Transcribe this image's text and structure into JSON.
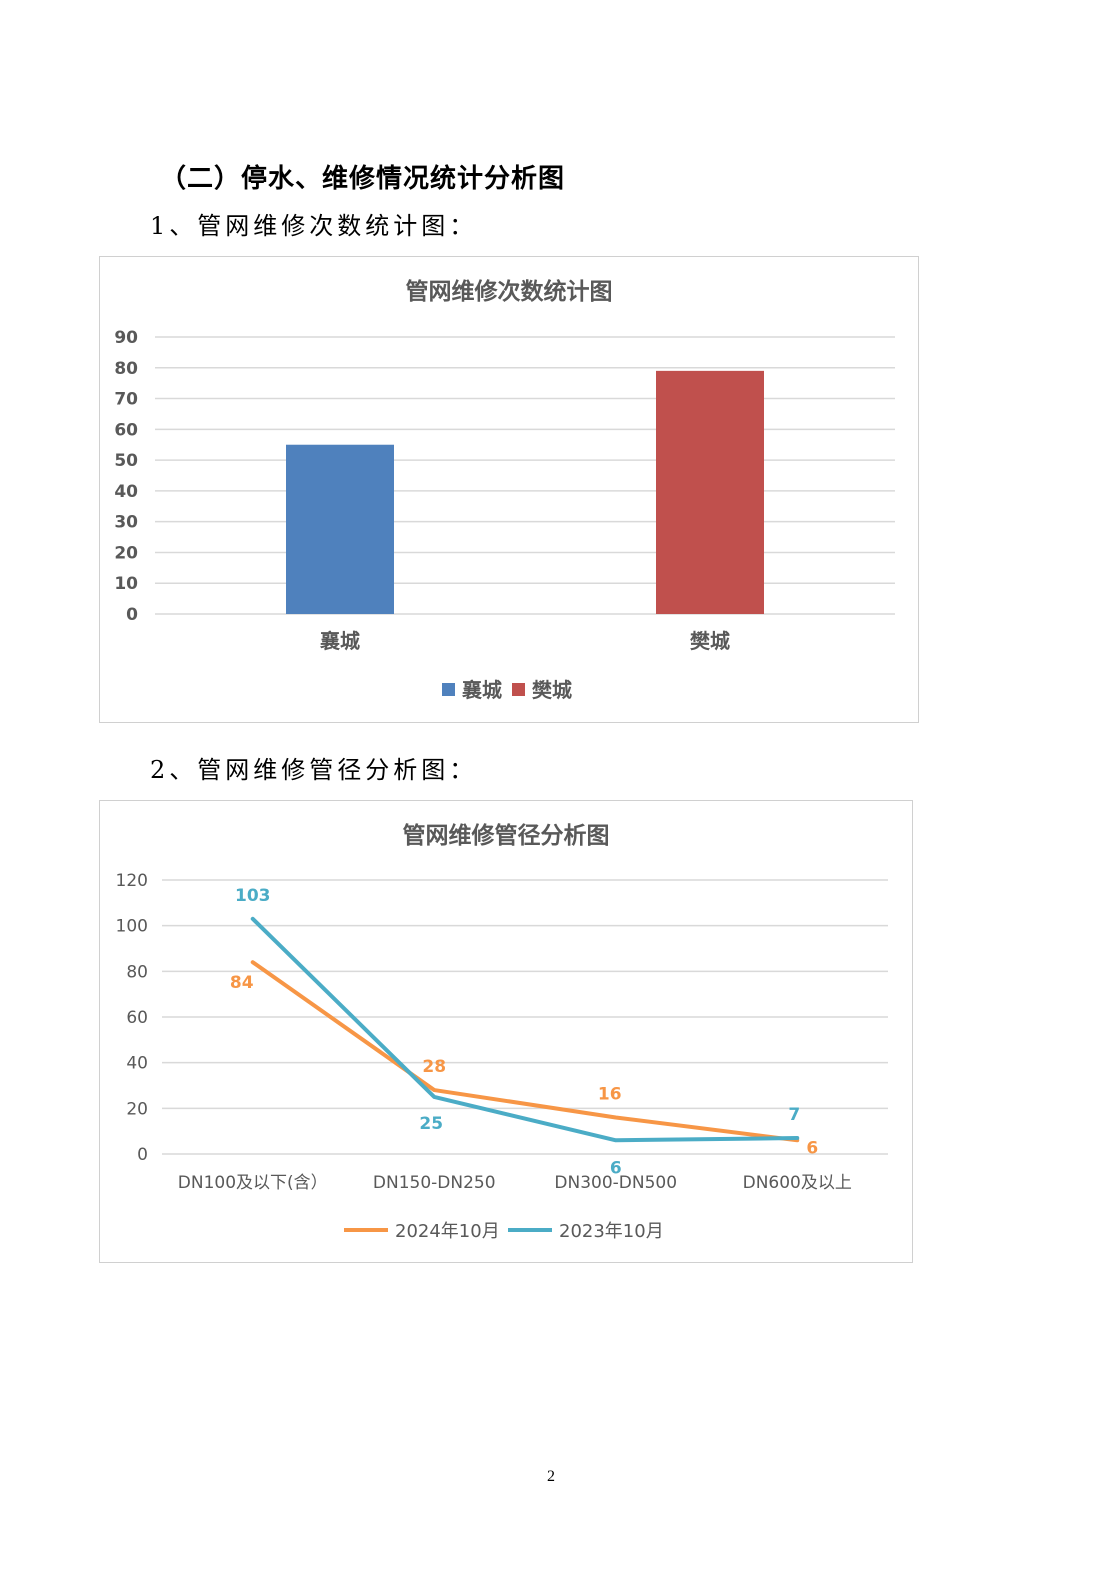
{
  "section_title": "（二）停水、维修情况统计分析图",
  "subtitle1": "1、管网维修次数统计图：",
  "subtitle2": "2、管网维修管径分析图：",
  "page_number": "2",
  "colors": {
    "xiangcheng": "#4f81bd",
    "fancheng": "#c0504d",
    "series_2024": "#f79646",
    "series_2023": "#4bacc6",
    "grid": "#d9d9d9",
    "axis_text": "#595959"
  },
  "chart_data": [
    {
      "type": "bar",
      "title": "管网维修次数统计图",
      "categories": [
        "襄城",
        "樊城"
      ],
      "values": [
        55,
        79
      ],
      "legend": [
        "襄城",
        "樊城"
      ],
      "yticks": [
        "0",
        "10",
        "20",
        "30",
        "40",
        "50",
        "60",
        "70",
        "80",
        "90"
      ],
      "ylim": [
        0,
        90
      ],
      "grid": true,
      "legend_position": "bottom"
    },
    {
      "type": "line",
      "title": "管网维修管径分析图",
      "categories": [
        "DN100及以下(含）",
        "DN150-DN250",
        "DN300-DN500",
        "DN600及以上"
      ],
      "series": [
        {
          "name": "2024年10月",
          "values": [
            84,
            28,
            16,
            6
          ]
        },
        {
          "name": "2023年10月",
          "values": [
            103,
            25,
            6,
            7
          ]
        }
      ],
      "yticks": [
        "0",
        "20",
        "40",
        "60",
        "80",
        "100",
        "120"
      ],
      "ylim": [
        0,
        120
      ],
      "grid": true,
      "data_labels": true,
      "legend_position": "bottom"
    }
  ]
}
